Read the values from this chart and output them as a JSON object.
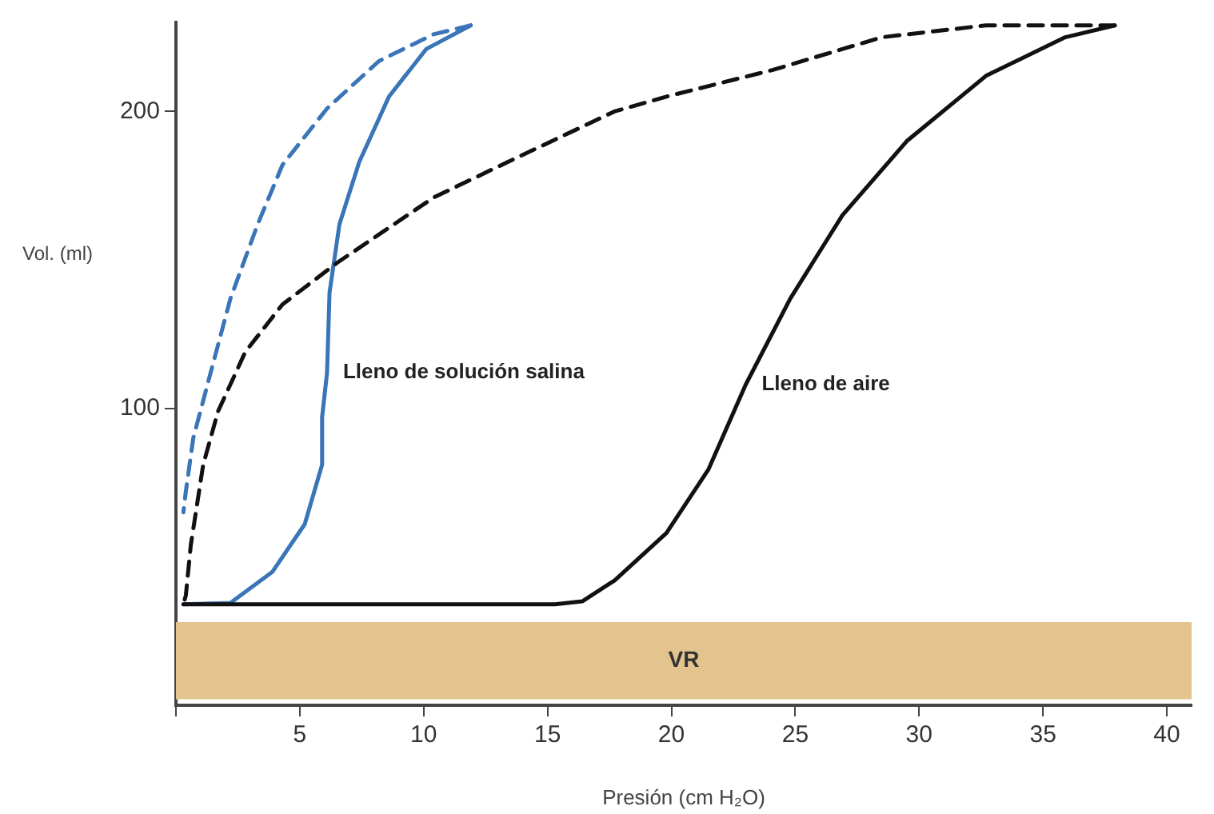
{
  "chart_data": {
    "type": "line",
    "xlabel": "Presión (cm H₂O)",
    "ylabel": "Vol. (ml)",
    "xlim": [
      0,
      41
    ],
    "ylim": [
      0,
      230
    ],
    "xticks": [
      {
        "value": 0,
        "label": null
      },
      5,
      10,
      15,
      20,
      25,
      30,
      35,
      40
    ],
    "yticks": [
      100,
      200
    ],
    "grid": false,
    "legend": false,
    "series": [
      {
        "color": "#111111",
        "line_style": "solid",
        "x": [
          0.3,
          5,
          10,
          15.3,
          16.4,
          17.7,
          19.8,
          21.5,
          23.0,
          24.8,
          26.9,
          29.5,
          32.7,
          35.9,
          37.9
        ],
        "values": [
          34,
          34,
          34,
          34,
          35,
          42,
          58,
          79.5,
          108,
          137,
          165,
          190,
          212,
          225,
          229
        ]
      },
      {
        "color": "#111111",
        "line_style": "dashed",
        "x": [
          37.9,
          32.7,
          28.5,
          24.1,
          19.8,
          17.7,
          13.4,
          10.4,
          6.5,
          4.3,
          2.8,
          1.7,
          1.1,
          0.6,
          0.4,
          0.3
        ],
        "values": [
          229,
          229,
          225,
          214,
          205,
          200,
          183,
          171,
          149,
          135,
          119,
          99,
          81,
          54,
          37,
          34
        ]
      },
      {
        "color": "#3a75b8",
        "line_style": "solid",
        "x": [
          0.3,
          2.2,
          3.9,
          5.2,
          5.9,
          5.9,
          6.1,
          6.2,
          6.6,
          7.4,
          8.6,
          10.1,
          11.9
        ],
        "values": [
          34,
          34.5,
          45,
          61,
          81,
          97,
          112,
          139,
          162,
          183,
          205,
          221,
          229
        ]
      },
      {
        "color": "#3a75b8",
        "line_style": "dashed",
        "x": [
          11.9,
          10.4,
          8.2,
          6.1,
          4.3,
          3.3,
          2.2,
          1.4,
          0.7,
          0.4,
          0.3
        ],
        "values": [
          229,
          226,
          217,
          201,
          182,
          162,
          137,
          112,
          90,
          72,
          65
        ]
      }
    ],
    "bands": [
      {
        "axis": "y",
        "from": 2,
        "to": 28,
        "label": "VR",
        "color": "#e3c48e"
      }
    ],
    "annotations": [
      {
        "text": "Lleno de solución salina",
        "x": 6.1,
        "y": 112
      },
      {
        "text": "Lleno de aire",
        "x": 23.0,
        "y": 108
      }
    ]
  }
}
